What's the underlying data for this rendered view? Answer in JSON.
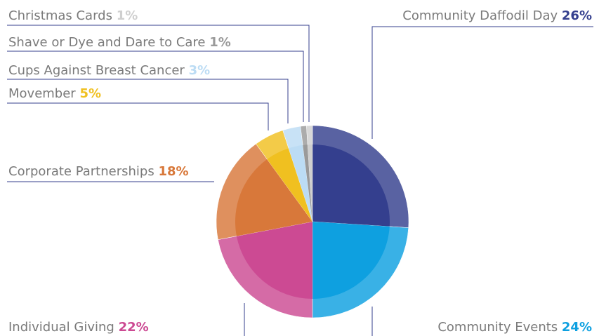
{
  "chart_data": {
    "type": "pie",
    "categories": [
      "Community Daffodil Day",
      "Community Events",
      "Individual Giving",
      "Corporate Partnerships",
      "Movember",
      "Cups Against Breast Cancer",
      "Shave or Dye and Dare to Care",
      "Christmas Cards"
    ],
    "values": [
      26,
      24,
      22,
      18,
      5,
      3,
      1,
      1
    ],
    "value_labels": [
      "26%",
      "24%",
      "22%",
      "18%",
      "5%",
      "3%",
      "1%",
      "1%"
    ],
    "colors": [
      "#343f8e",
      "#0ea0e0",
      "#cc4a93",
      "#d8783a",
      "#f0c020",
      "#bcdcf4",
      "#9a9a9a",
      "#cfcfcf"
    ]
  }
}
